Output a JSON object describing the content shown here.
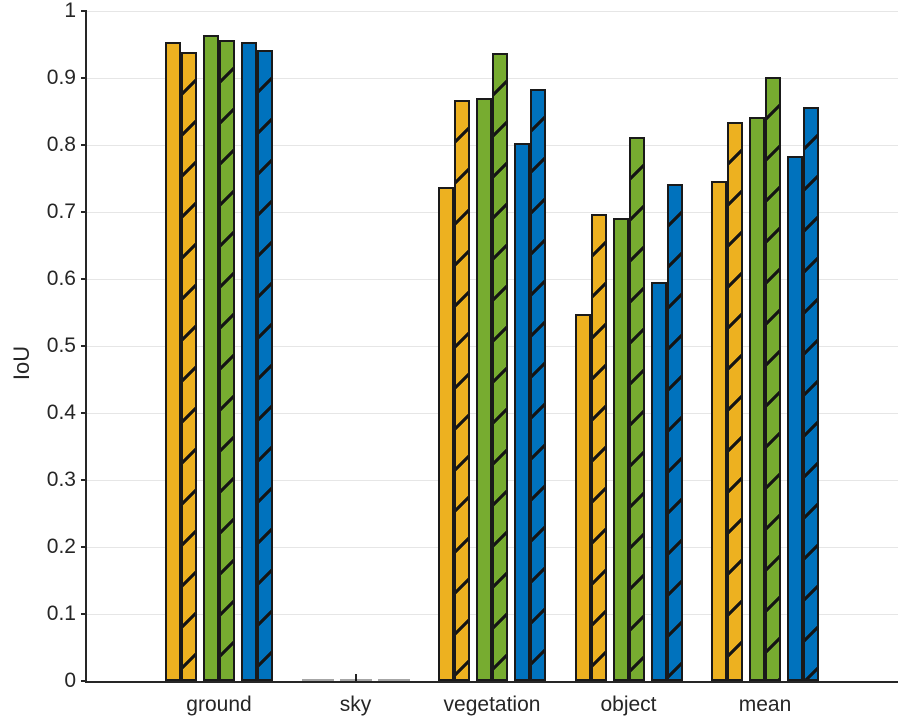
{
  "chart_data": {
    "type": "bar",
    "title": "",
    "xlabel": "",
    "ylabel": "IoU",
    "categories": [
      "ground",
      "sky",
      "vegetation",
      "object",
      "mean"
    ],
    "series": [
      {
        "name": "yellow-solid",
        "color": "#EDB120",
        "hatched": false,
        "values": [
          0.953,
          0,
          0.737,
          0.548,
          0.746
        ]
      },
      {
        "name": "yellow-hatched",
        "color": "#EDB120",
        "hatched": true,
        "values": [
          0.939,
          0,
          0.867,
          0.697,
          0.834
        ]
      },
      {
        "name": "green-solid",
        "color": "#77AC30",
        "hatched": false,
        "values": [
          0.964,
          0,
          0.87,
          0.691,
          0.842
        ]
      },
      {
        "name": "green-hatched",
        "color": "#77AC30",
        "hatched": true,
        "values": [
          0.957,
          0,
          0.937,
          0.812,
          0.902
        ]
      },
      {
        "name": "blue-solid",
        "color": "#0072BD",
        "hatched": false,
        "values": [
          0.953,
          0,
          0.803,
          0.595,
          0.784
        ]
      },
      {
        "name": "blue-hatched",
        "color": "#0072BD",
        "hatched": true,
        "values": [
          0.942,
          0,
          0.883,
          0.742,
          0.856
        ]
      }
    ],
    "ylim": [
      0,
      1
    ],
    "ytick_labels": [
      "0",
      "0.1",
      "0.2",
      "0.3",
      "0.4",
      "0.5",
      "0.6",
      "0.7",
      "0.8",
      "0.9",
      "1"
    ],
    "grid": true,
    "legend": "none",
    "colors": {
      "edge": "#1a1a1a",
      "grid": "#e6e6e6",
      "axis": "#262626",
      "text": "#262626"
    }
  }
}
